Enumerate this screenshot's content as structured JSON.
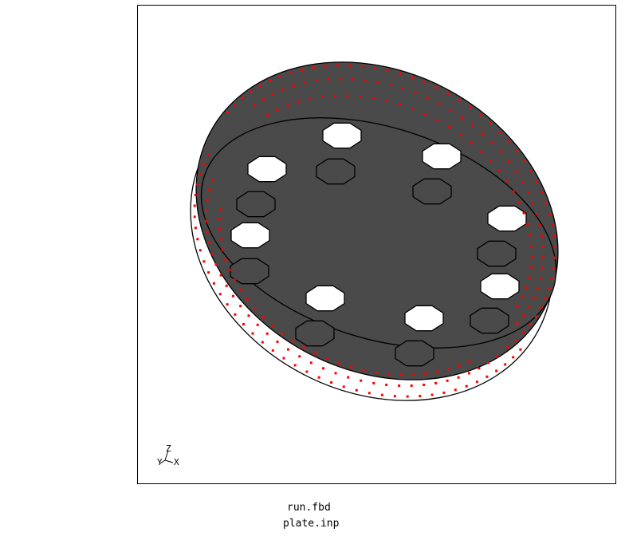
{
  "viewport": {
    "axes": {
      "z_label": "Z",
      "y_label": "Y",
      "x_label": "X"
    }
  },
  "files": {
    "file1": "run.fbd",
    "file2": "plate.inp"
  },
  "colors": {
    "plate_top": "#4a4a4a",
    "node_marker": "#ff0000",
    "outline": "#000000"
  }
}
